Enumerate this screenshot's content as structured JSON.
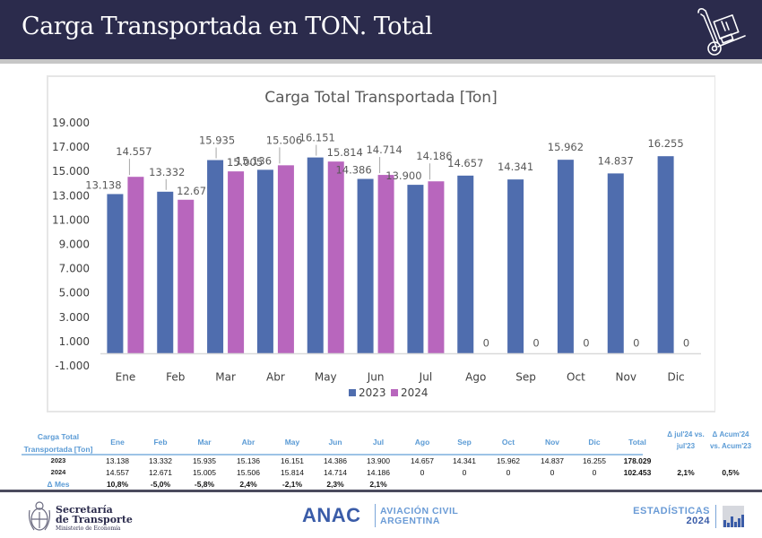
{
  "header": {
    "title": "Carga Transportada en TON. Total",
    "icon": "hand-truck-icon"
  },
  "colors": {
    "header_bg": "#2b2b4c",
    "series_2023": "#4f6dae",
    "series_2024": "#b866bd",
    "table_header": "#5b9bd5",
    "grid_axis": "#d9d9d9"
  },
  "chart_data": {
    "type": "bar",
    "title": "Carga Total Transportada [Ton]",
    "xlabel": "",
    "ylabel": "",
    "categories": [
      "Ene",
      "Feb",
      "Mar",
      "Abr",
      "May",
      "Jun",
      "Jul",
      "Ago",
      "Sep",
      "Oct",
      "Nov",
      "Dic"
    ],
    "series": [
      {
        "name": "2023",
        "values": [
          13138,
          13332,
          15935,
          15136,
          16151,
          14386,
          13900,
          14657,
          14341,
          15962,
          14837,
          16255
        ],
        "labels": [
          "13.138",
          "13.332",
          "15.935",
          "15.136",
          "16.151",
          "14.386",
          "13.900",
          "14.657",
          "14.341",
          "15.962",
          "14.837",
          "16.255"
        ]
      },
      {
        "name": "2024",
        "values": [
          14557,
          12671,
          15005,
          15506,
          15814,
          14714,
          14186,
          0,
          0,
          0,
          0,
          0
        ],
        "labels": [
          "14.557",
          "12.671",
          "15.005",
          "15.506",
          "15.814",
          "14.714",
          "14.186",
          "0",
          "0",
          "0",
          "0",
          "0"
        ]
      }
    ],
    "ylim": [
      -1000,
      19000
    ],
    "yticks": [
      19000,
      17000,
      15000,
      13000,
      11000,
      9000,
      7000,
      5000,
      3000,
      1000,
      -1000
    ],
    "ytick_labels": [
      "19.000",
      "17.000",
      "15.000",
      "13.000",
      "11.000",
      "9.000",
      "7.000",
      "5.000",
      "3.000",
      "1.000",
      "-1.000"
    ],
    "grid": false,
    "legend": {
      "position": "bottom",
      "entries": [
        "2023",
        "2024"
      ]
    }
  },
  "table": {
    "title_line1": "Carga Total",
    "title_line2": "Transportada [Ton]",
    "months": [
      "Ene",
      "Feb",
      "Mar",
      "Abr",
      "May",
      "Jun",
      "Jul",
      "Ago",
      "Sep",
      "Oct",
      "Nov",
      "Dic"
    ],
    "total_header": "Total",
    "delta_month_header_line1": "Δ jul'24 vs.",
    "delta_month_header_line2": "jul'23",
    "delta_acum_header_line1": "Δ Acum'24",
    "delta_acum_header_line2": "vs. Acum'23",
    "rows": [
      {
        "label": "2023",
        "values": [
          "13.138",
          "13.332",
          "15.935",
          "15.136",
          "16.151",
          "14.386",
          "13.900",
          "14.657",
          "14.341",
          "15.962",
          "14.837",
          "16.255"
        ],
        "total": "178.029",
        "delta_month": "",
        "delta_acum": ""
      },
      {
        "label": "2024",
        "values": [
          "14.557",
          "12.671",
          "15.005",
          "15.506",
          "15.814",
          "14.714",
          "14.186",
          "0",
          "0",
          "0",
          "0",
          "0"
        ],
        "total": "102.453",
        "delta_month": "2,1%",
        "delta_acum": "0,5%"
      },
      {
        "label": "Δ Mes",
        "values": [
          "10,8%",
          "-5,0%",
          "-5,8%",
          "2,4%",
          "-2,1%",
          "2,3%",
          "2,1%",
          "",
          "",
          "",
          "",
          ""
        ],
        "total": "",
        "delta_month": "",
        "delta_acum": ""
      }
    ]
  },
  "footer": {
    "secretaria_line1": "Secretaría",
    "secretaria_line2": "de Transporte",
    "ministerio": "Ministerio de Economía",
    "anac": "ANAC",
    "anac_sub1": "AVIACIÓN CIVIL",
    "anac_sub2": "ARGENTINA",
    "estadisticas": "ESTADÍSTICAS",
    "year": "2024"
  }
}
